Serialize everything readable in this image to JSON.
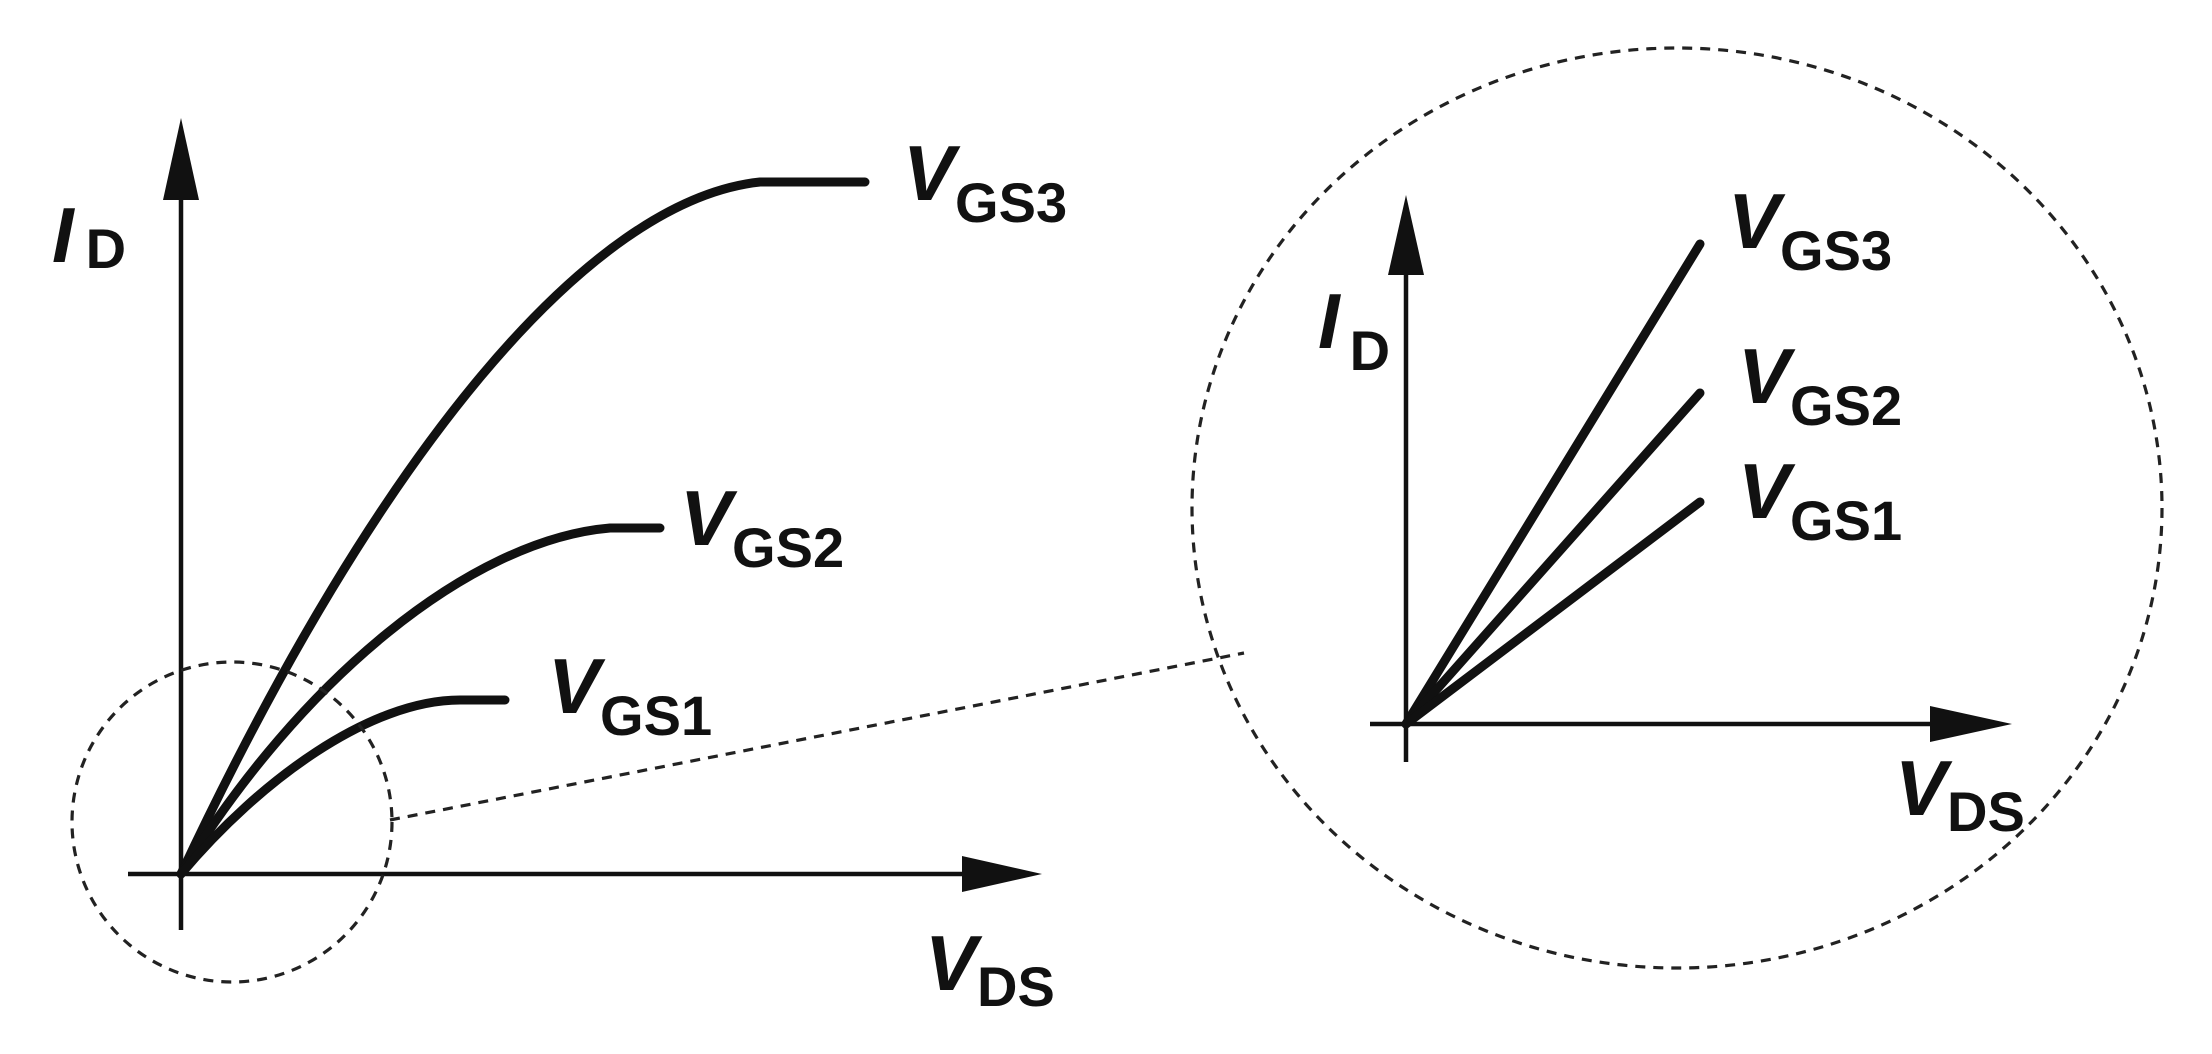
{
  "left_plot": {
    "y_axis_label": {
      "main": "I",
      "sub": "D"
    },
    "x_axis_label": {
      "main": "V",
      "sub": "DS"
    },
    "curves": [
      {
        "main": "V",
        "sub": "GS3"
      },
      {
        "main": "V",
        "sub": "GS2"
      },
      {
        "main": "V",
        "sub": "GS1"
      }
    ]
  },
  "zoom_plot": {
    "y_axis_label": {
      "main": "I",
      "sub": "D"
    },
    "x_axis_label": {
      "main": "V",
      "sub": "DS"
    },
    "lines": [
      {
        "main": "V",
        "sub": "GS3"
      },
      {
        "main": "V",
        "sub": "GS2"
      },
      {
        "main": "V",
        "sub": "GS1"
      }
    ]
  }
}
